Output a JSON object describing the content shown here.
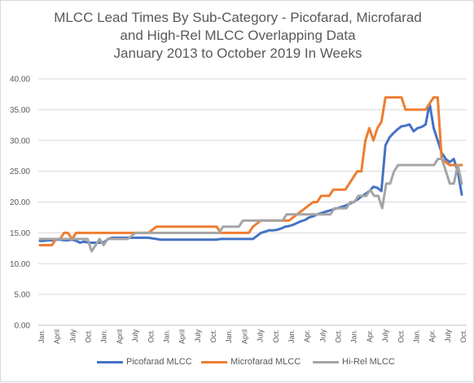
{
  "chart_data": {
    "type": "line",
    "title_lines": [
      "MLCC Lead Times By Sub-Category - Picofarad, Microfarad",
      "and High-Rel MLCC Overlapping Data",
      "January 2013 to October 2019 In Weeks"
    ],
    "xlabel": "",
    "ylabel": "",
    "ylim": [
      0,
      40
    ],
    "yticks": [
      "0.00",
      "5.00",
      "10.00",
      "15.00",
      "20.00",
      "25.00",
      "30.00",
      "35.00",
      "40.00"
    ],
    "x_tick_labels": [
      "Jan.",
      "April",
      "July",
      "Oct.",
      "Jan.",
      "April",
      "July",
      "Oct.",
      "Jan.",
      "April",
      "July",
      "Oct.",
      "Jan.",
      "April",
      "July",
      "Oct.",
      "Jan.",
      "Apr.",
      "July",
      "Oct.",
      "Jan.",
      "Apr.",
      "July",
      "Oct.",
      "Jan.",
      "Apr.",
      "July",
      "Oct."
    ],
    "grid": true,
    "legend_position": "bottom",
    "series": [
      {
        "name": "Picofarad MLCC",
        "color": "#4472c4",
        "values": [
          13.7,
          13.7,
          13.8,
          13.8,
          13.9,
          13.9,
          13.8,
          13.8,
          13.9,
          13.7,
          13.4,
          13.6,
          13.4,
          13.4,
          13.4,
          13.4,
          13.5,
          14,
          14.2,
          14.2,
          14.2,
          14.2,
          14.2,
          14.2,
          14.2,
          14.2,
          14.2,
          14.2,
          14.1,
          14,
          13.9,
          13.9,
          13.9,
          13.9,
          13.9,
          13.9,
          13.9,
          13.9,
          13.9,
          13.9,
          13.9,
          13.9,
          13.9,
          13.9,
          13.9,
          14,
          14,
          14,
          14,
          14,
          14,
          14,
          14,
          14,
          14.5,
          15,
          15.2,
          15.4,
          15.4,
          15.5,
          15.7,
          16,
          16.1,
          16.3,
          16.6,
          16.9,
          17.1,
          17.5,
          17.7,
          18,
          18.2,
          18.4,
          18.6,
          18.8,
          19,
          19.2,
          19.4,
          19.7,
          20,
          20.4,
          20.9,
          21.3,
          21.8,
          22.5,
          22.3,
          21.8,
          29.2,
          30.5,
          31.2,
          31.8,
          32.3,
          32.4,
          32.6,
          31.5,
          32,
          32.2,
          32.6,
          36,
          32,
          30,
          28,
          27,
          26.5,
          27,
          25,
          21.2
        ]
      },
      {
        "name": "Microfarad MLCC",
        "color": "#ed7d31",
        "values": [
          13,
          13,
          13,
          13,
          14,
          14,
          15,
          15,
          14,
          15,
          15,
          15,
          15,
          15,
          15,
          15,
          15,
          15,
          15,
          15,
          15,
          15,
          15,
          15,
          15,
          15,
          15,
          15,
          15.5,
          16,
          16,
          16,
          16,
          16,
          16,
          16,
          16,
          16,
          16,
          16,
          16,
          16,
          16,
          16,
          16,
          15,
          15,
          15,
          15,
          15,
          15,
          15,
          15,
          16,
          16.5,
          17,
          17,
          17,
          17,
          17,
          17,
          17,
          17,
          17.5,
          18,
          18.5,
          19,
          19.5,
          20,
          20,
          21,
          21,
          21,
          22,
          22,
          22,
          22,
          23,
          24,
          25,
          25,
          30,
          32,
          30,
          32,
          33,
          37,
          37,
          37,
          37,
          37,
          35,
          35,
          35,
          35,
          35,
          35,
          36,
          37,
          37,
          27,
          26.5,
          26,
          26,
          26,
          26
        ]
      },
      {
        "name": "Hi-Rel MLCC",
        "color": "#a5a5a5",
        "values": [
          14,
          14,
          14,
          14,
          14,
          14,
          14,
          14,
          14,
          14,
          14,
          14,
          14,
          12,
          13,
          14,
          13,
          14,
          14,
          14,
          14,
          14,
          14,
          14.5,
          15,
          15,
          15,
          15,
          15,
          15,
          15,
          15,
          15,
          15,
          15,
          15,
          15,
          15,
          15,
          15,
          15,
          15,
          15,
          15,
          15,
          15,
          16,
          16,
          16,
          16,
          16,
          17,
          17,
          17,
          17,
          17,
          17,
          17,
          17,
          17,
          17,
          17,
          18,
          18,
          18,
          18,
          18,
          18,
          18,
          18,
          18,
          18,
          18,
          18,
          19,
          19,
          19,
          19,
          20,
          20,
          21,
          21,
          21,
          22,
          21,
          21,
          19,
          23,
          23,
          25,
          26,
          26,
          26,
          26,
          26,
          26,
          26,
          26,
          26,
          26,
          27,
          27,
          25,
          23,
          23,
          26,
          23
        ]
      }
    ]
  }
}
